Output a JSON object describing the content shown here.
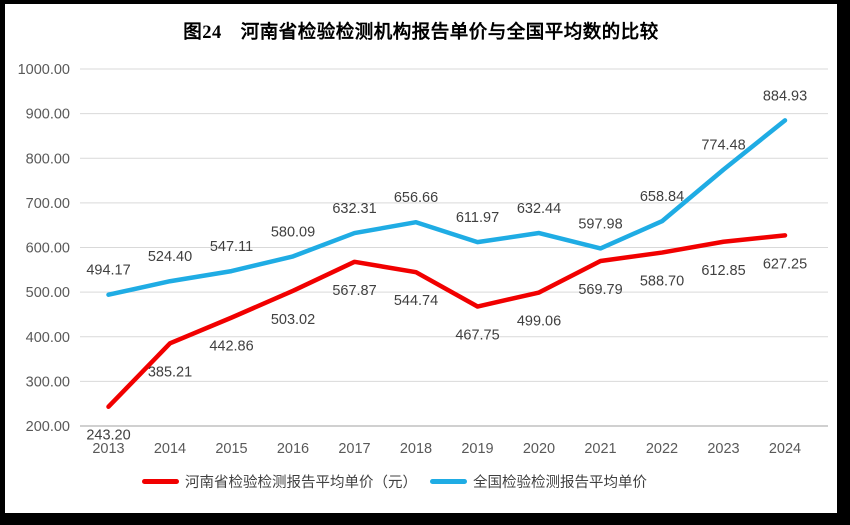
{
  "window": {
    "border_color": "#000000",
    "background": "#ffffff"
  },
  "chart_data": {
    "type": "line",
    "title": "图24　河南省检验检测机构报告单价与全国平均数的比较",
    "categories": [
      "2013",
      "2014",
      "2015",
      "2016",
      "2017",
      "2018",
      "2019",
      "2020",
      "2021",
      "2022",
      "2023",
      "2024"
    ],
    "series": [
      {
        "name": "河南省检验检测报告平均单价（元）",
        "color": "#f10000",
        "label_position": "below",
        "values": [
          243.2,
          385.21,
          442.86,
          503.02,
          567.87,
          544.74,
          467.75,
          499.06,
          569.79,
          588.7,
          612.85,
          627.25
        ]
      },
      {
        "name": "全国检验检测报告平均单价",
        "color": "#1face4",
        "label_position": "above",
        "values": [
          494.17,
          524.4,
          547.11,
          580.09,
          632.31,
          656.66,
          611.97,
          632.44,
          597.98,
          658.84,
          774.48,
          884.93
        ]
      }
    ],
    "y_axis": {
      "min": 200,
      "max": 1000,
      "step": 100,
      "decimals": 2
    },
    "grid": true,
    "legend_position": "bottom",
    "colors": {
      "gridline": "#d9d9d9",
      "axis_line": "#c9c9c9",
      "tick_text": "#595959",
      "data_label_text": "#404040",
      "title_text": "#000000"
    }
  }
}
